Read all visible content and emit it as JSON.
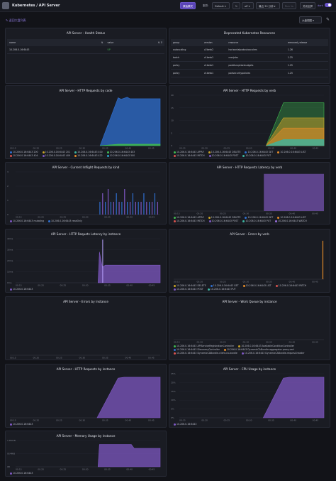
{
  "topbar": {
    "breadcrumb": "Kubernetes / API Server",
    "btn_primary": "原始模式",
    "cluster_label": "集群:",
    "cluster_value": "Default",
    "refresh_value": "off",
    "range_value": "最近 30 分钟",
    "refresh_btn": "Run 1s",
    "exit_btn": "关闭全屏",
    "theme_label": "dark"
  },
  "toolbar": {
    "back": "返回大盘列表",
    "fullscreen": "大盘视图"
  },
  "colors": {
    "accent": "#6a55c9",
    "green": "#3fb950",
    "blue": "#2f6fd0",
    "purple": "#7e57c2",
    "yellow": "#c9a227",
    "teal": "#3cb4a0",
    "red": "#d9534f",
    "orange": "#e38b29"
  },
  "health": {
    "title": "API Server - Health Status",
    "headers": [
      "name",
      "value"
    ],
    "rows": [
      [
        "10.206.0.16:6443",
        "UP"
      ]
    ]
  },
  "deprecated": {
    "title": "Deprecated Kubernetes Resources",
    "headers": [
      "group",
      "version",
      "resource",
      "removed_release"
    ],
    "rows": [
      [
        "autoscaling",
        "v2beta2",
        "horizontalpodautoscalers",
        "1.26"
      ],
      [
        "batch",
        "v1beta1",
        "cronjobs",
        "1.25"
      ],
      [
        "policy",
        "v1beta1",
        "poddisruptionbudgets",
        "1.25"
      ],
      [
        "policy",
        "v1beta1",
        "podsecuritypolicies",
        "1.25"
      ]
    ]
  },
  "panels": {
    "req_code": {
      "title": "API Server - HTTP Requests by code",
      "legend": [
        "10.206.0.16:6443 200",
        "10.206.0.16:6443 201",
        "10.206.0.16:6443 400",
        "10.206.0.16:6443 403",
        "10.206.0.16:6443 404",
        "10.206.0.16:6443 409",
        "10.206.0.16:6443 422",
        "10.206.0.16:6443 500"
      ],
      "legend_colors": [
        "#2f6fd0",
        "#c9a227",
        "#3cb4a0",
        "#3fb950",
        "#d9534f",
        "#7e57c2",
        "#e38b29",
        "#2aa5c9"
      ],
      "x_ticks": [
        "00:15",
        "00:20",
        "00:25",
        "00:30",
        "00:35",
        "00:40",
        "00:45"
      ],
      "y_ticks": []
    },
    "req_verb": {
      "title": "API Server - HTTP Requests by verb",
      "legend": [
        "10.206.0.16:6443 APPLY",
        "10.206.0.16:6443 DELETE",
        "10.206.0.16:6443 GET",
        "10.206.0.16:6443 LIST",
        "10.206.0.16:6443 PATCH",
        "10.206.0.16:6443 POST",
        "10.206.0.16:6443 PUT"
      ],
      "legend_colors": [
        "#3fb950",
        "#c9a227",
        "#2f6fd0",
        "#e38b29",
        "#d9534f",
        "#7e57c2",
        "#3cb4a0"
      ],
      "x_ticks": [
        "00:15",
        "00:20",
        "00:25",
        "00:30",
        "00:35",
        "00:40",
        "00:45"
      ],
      "y_ticks": [
        "20",
        "15",
        "10",
        "5",
        "0"
      ]
    },
    "inflight": {
      "title": "API Server - Current Inflight Requests by kind",
      "legend": [
        "10.206.0.16:6443 mutating",
        "10.206.0.16:6443 readOnly"
      ],
      "legend_colors": [
        "#7e57c2",
        "#2f6fd0"
      ],
      "x_ticks": [
        "00:15",
        "00:20",
        "00:25",
        "00:30",
        "00:35",
        "00:40",
        "00:45"
      ],
      "y_ticks": [
        "3",
        "2",
        "1",
        "0"
      ]
    },
    "latency_verb": {
      "title": "API Server - HTTP Requests Latency by verb",
      "legend": [
        "10.206.0.16:6443 APPLY",
        "10.206.0.16:6443 DELETE",
        "10.206.0.16:6443 GET",
        "10.206.0.16:6443 LIST",
        "10.206.0.16:6443 PATCH",
        "10.206.0.16:6443 POST",
        "10.206.0.16:6443 PUT",
        "10.206.0.16:6443 WATCH"
      ],
      "legend_colors": [
        "#3fb950",
        "#c9a227",
        "#2f6fd0",
        "#e38b29",
        "#d9534f",
        "#7e57c2",
        "#3cb4a0",
        "#9a6fe0"
      ],
      "x_ticks": [
        "00:15",
        "00:20",
        "00:25",
        "00:30",
        "00:35",
        "00:40",
        "00:45"
      ],
      "y_ticks": []
    },
    "latency_inst": {
      "title": "API Server - HTTP Requets Latency by instance",
      "legend": [
        "10.206.0.16:6443"
      ],
      "legend_colors": [
        "#7e57c2"
      ],
      "x_ticks": [
        "00:15",
        "00:20",
        "00:25",
        "00:30",
        "00:35",
        "00:40",
        "00:45"
      ],
      "y_ticks": [
        "40ms",
        "30ms",
        "20ms",
        "10ms",
        "0ms"
      ]
    },
    "errors_verb": {
      "title": "API Server - Errors by verb",
      "legend": [
        "10.206.0.16:6443 DELETE",
        "10.206.0.16:6443 GET",
        "10.206.0.16:6443 LIST",
        "10.206.0.16:6443 PATCH",
        "10.206.0.16:6443 POST",
        "10.206.0.16:6443 PUT"
      ],
      "legend_colors": [
        "#c9a227",
        "#2f6fd0",
        "#e38b29",
        "#d9534f",
        "#7e57c2",
        "#3cb4a0"
      ],
      "x_ticks": [
        "00:15",
        "00:20",
        "00:25",
        "00:30",
        "00:35",
        "00:40",
        "00:45"
      ],
      "y_ticks": []
    },
    "errors_inst": {
      "title": "API Server - Errors by Instance",
      "legend": [],
      "legend_colors": [],
      "x_ticks": [
        "00:15",
        "00:20",
        "00:25",
        "00:30",
        "00:35",
        "00:40",
        "00:45"
      ],
      "y_ticks": []
    },
    "workqueue": {
      "title": "API Server - Work Queue by instance",
      "legend": [
        "10.206.0.16:6443 APIServiceRegistrationController",
        "10.206.0.16:6443 AvailableConditionController",
        "10.206.0.16:6443 DiscoveryController",
        "10.206.0.16:6443 DynamicCABundle-aggregator-proxy-cert",
        "10.206.0.16:6443 DynamicCABundle-client-ca-bundle",
        "10.206.0.16:6443 DynamicCABundle-request-header"
      ],
      "legend_colors": [
        "#3fb950",
        "#c9a227",
        "#2f6fd0",
        "#e38b29",
        "#d9534f",
        "#7e57c2"
      ],
      "x_ticks": [
        "00:15",
        "00:20",
        "00:25",
        "00:30",
        "00:35",
        "00:40",
        "00:45"
      ],
      "y_ticks": []
    },
    "req_inst": {
      "title": "API Server - HTTP Requests by instance",
      "legend": [
        "10.206.0.16:6443"
      ],
      "legend_colors": [
        "#7e57c2"
      ],
      "x_ticks": [
        "00:15",
        "00:20",
        "00:25",
        "00:30",
        "00:35",
        "00:40",
        "00:45"
      ],
      "y_ticks": []
    },
    "cpu_inst": {
      "title": "API Server - CPU Usage by instance",
      "legend": [
        "10.206.0.16:6443"
      ],
      "legend_colors": [
        "#7e57c2"
      ],
      "x_ticks": [
        "00:15",
        "00:20",
        "00:25",
        "00:30",
        "00:35",
        "00:40",
        "00:45"
      ],
      "y_ticks": [
        "25%",
        "20%",
        "15%",
        "10%",
        "5%",
        "0%"
      ]
    },
    "mem_inst": {
      "title": "API Server - Memory Usage by instance",
      "legend": [
        "10.206.0.16:6443"
      ],
      "legend_colors": [
        "#7e57c2"
      ],
      "x_ticks": [
        "00:15",
        "00:20",
        "00:25",
        "00:30",
        "00:35",
        "00:40",
        "00:45"
      ],
      "y_ticks": [
        "1.86GiB",
        "954MiB",
        "0B"
      ]
    }
  }
}
